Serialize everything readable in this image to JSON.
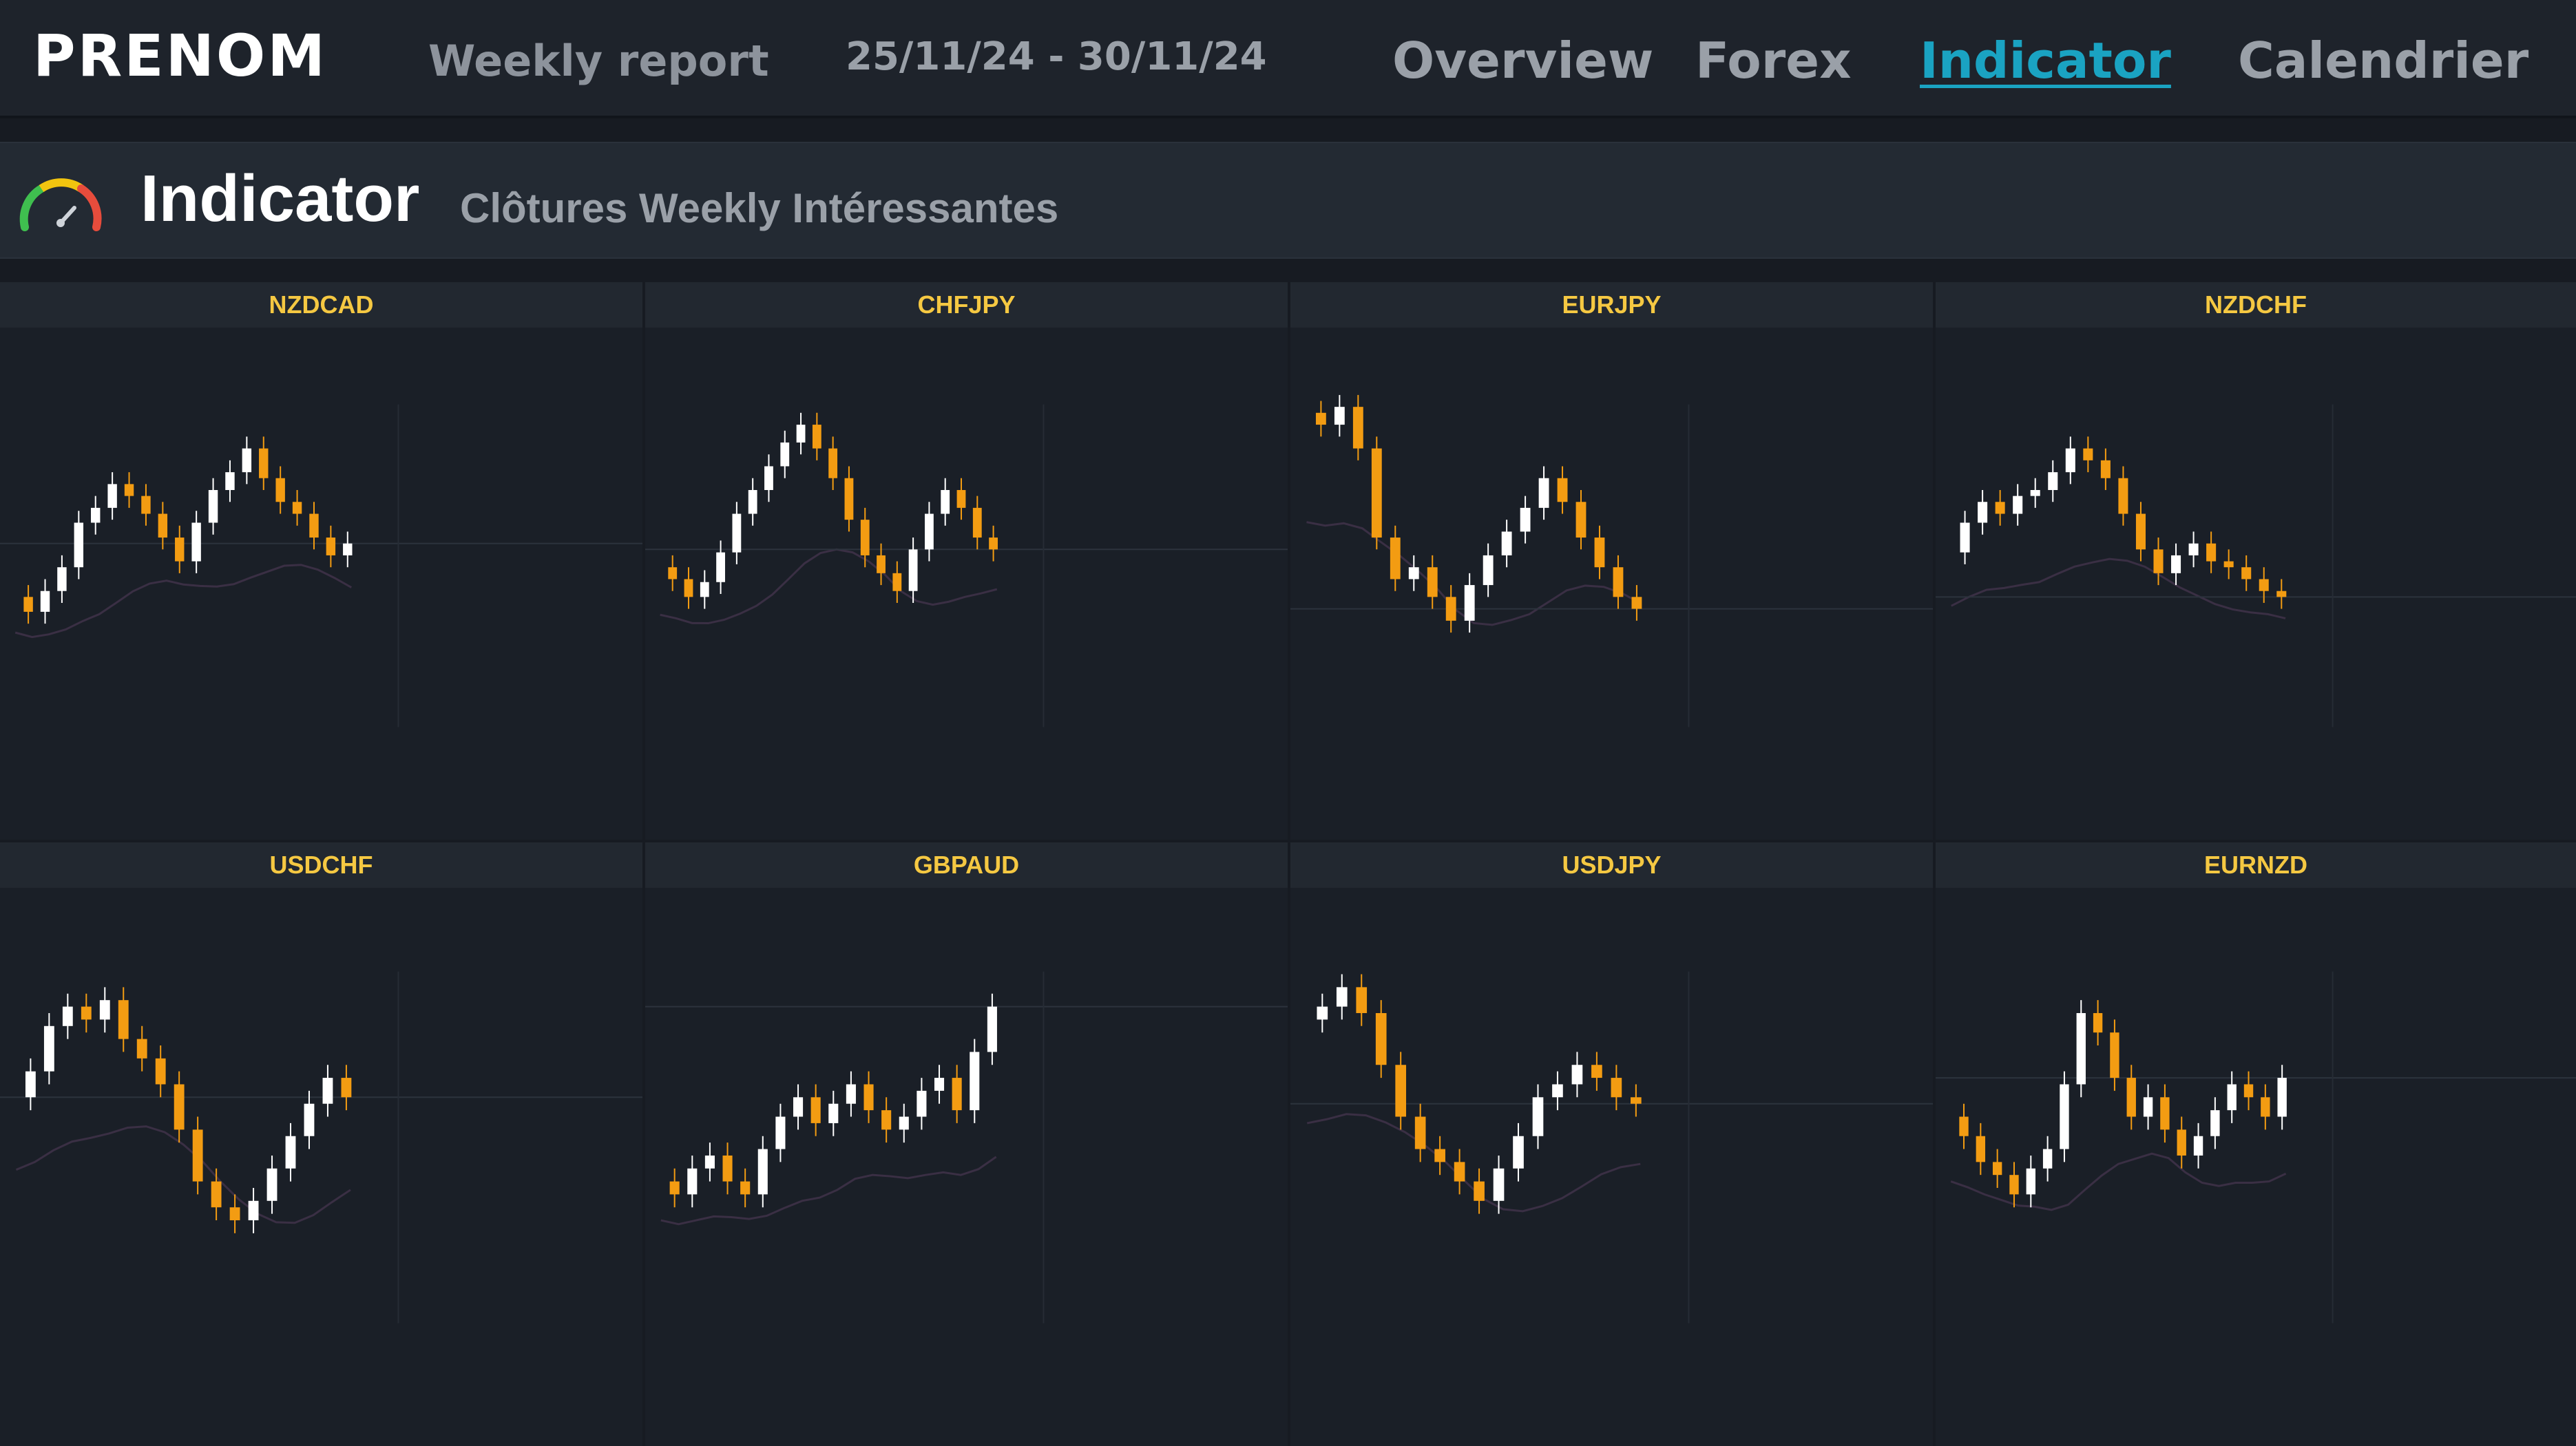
{
  "header": {
    "brand": "PRENOM",
    "report_title": "Weekly report",
    "date_range": "25/11/24 - 30/11/24",
    "nav": [
      {
        "label": "Overview",
        "active": false
      },
      {
        "label": "Forex",
        "active": false
      },
      {
        "label": "Indicator",
        "active": true
      },
      {
        "label": "Calendrier",
        "active": false
      }
    ],
    "accent_color": "#1aa3c2"
  },
  "section": {
    "title": "Indicator",
    "subtitle": "Clôtures Weekly Intéressantes",
    "icon": "gauge-icon"
  },
  "colors": {
    "up_candle": "#ffffff",
    "down_candle": "#f39c12",
    "label": "#f5c842"
  },
  "charts": [
    {
      "pair": "NZDCAD"
    },
    {
      "pair": "CHFJPY"
    },
    {
      "pair": "EURJPY"
    },
    {
      "pair": "NZDCHF"
    },
    {
      "pair": "USDCHF"
    },
    {
      "pair": "GBPAUD"
    },
    {
      "pair": "USDJPY"
    },
    {
      "pair": "EURNZD"
    }
  ]
}
